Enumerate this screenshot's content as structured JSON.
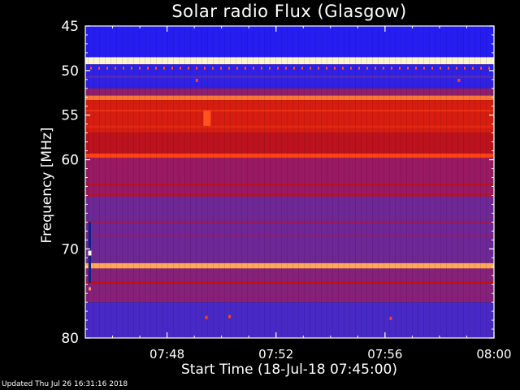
{
  "chart_data": {
    "type": "heatmap",
    "title": "Solar radio Flux (Glasgow)",
    "xlabel": "Start Time (18-Jul-18 07:45:00)",
    "ylabel": "Frequency [MHz]",
    "xlim": [
      "07:45:00",
      "08:00:00"
    ],
    "ylim": [
      80,
      45
    ],
    "x_ticks": [
      "07:48",
      "07:52",
      "07:56",
      "08:00"
    ],
    "y_ticks": [
      45,
      50,
      55,
      60,
      70,
      80
    ],
    "colormap": [
      "#1a1aff",
      "#5a2fb0",
      "#9a1a60",
      "#c41010",
      "#ff3a10",
      "#ffb060",
      "#fffde0"
    ],
    "intensity_bands": [
      {
        "from_mhz": 45.0,
        "to_mhz": 48.5,
        "level": 0.03
      },
      {
        "from_mhz": 48.5,
        "to_mhz": 49.3,
        "level": 0.98
      },
      {
        "from_mhz": 49.3,
        "to_mhz": 52.0,
        "level": 0.06
      },
      {
        "from_mhz": 52.0,
        "to_mhz": 52.8,
        "level": 0.3
      },
      {
        "from_mhz": 52.8,
        "to_mhz": 53.3,
        "level": 0.75
      },
      {
        "from_mhz": 53.3,
        "to_mhz": 57.0,
        "level": 0.55
      },
      {
        "from_mhz": 57.0,
        "to_mhz": 59.3,
        "level": 0.47
      },
      {
        "from_mhz": 59.3,
        "to_mhz": 59.8,
        "level": 0.68
      },
      {
        "from_mhz": 59.8,
        "to_mhz": 64.0,
        "level": 0.33
      },
      {
        "from_mhz": 64.0,
        "to_mhz": 71.6,
        "level": 0.22
      },
      {
        "from_mhz": 71.6,
        "to_mhz": 72.2,
        "level": 0.82
      },
      {
        "from_mhz": 72.2,
        "to_mhz": 76.0,
        "level": 0.28
      },
      {
        "from_mhz": 76.0,
        "to_mhz": 80.0,
        "level": 0.12
      }
    ],
    "lines": [
      {
        "mhz": 50.7,
        "level": 0.15
      },
      {
        "mhz": 51.6,
        "level": 0.05
      },
      {
        "mhz": 54.5,
        "level": 0.62
      },
      {
        "mhz": 56.3,
        "level": 0.6
      },
      {
        "mhz": 62.8,
        "level": 0.45
      },
      {
        "mhz": 64.0,
        "level": 0.48
      },
      {
        "mhz": 67.0,
        "level": 0.35
      },
      {
        "mhz": 68.5,
        "level": 0.3
      },
      {
        "mhz": 73.8,
        "level": 0.5
      }
    ]
  },
  "footer": "Updated Thu Jul 26 16:31:16 2018"
}
